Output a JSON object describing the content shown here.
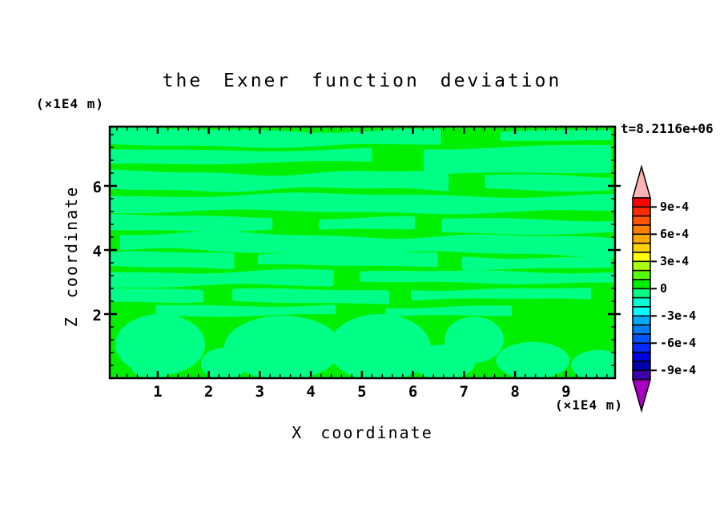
{
  "title": "the Exner function deviation",
  "time_label": "t=8.2116e+06",
  "x_axis_label": "X coordinate",
  "y_axis_label": "Z coordinate",
  "x_axis_unit": "(×1E4 m)",
  "y_axis_unit": "(×1E4 m)",
  "colorbar": {
    "labels": [
      "9e-4",
      "6e-4",
      "3e-4",
      "0",
      "-3e-4",
      "-6e-4",
      "-9e-4"
    ],
    "cell_colors": [
      "#FF0000",
      "#FF2A00",
      "#FF5500",
      "#FF8000",
      "#FFAA00",
      "#FFD400",
      "#FFFF00",
      "#AAFF00",
      "#55FF00",
      "#00EE00",
      "#00FF87",
      "#00FFD4",
      "#00FFFF",
      "#00AAFF",
      "#0080FF",
      "#0055FF",
      "#002AFF",
      "#0000E0",
      "#0000AA",
      "#3C00AA"
    ],
    "over_arrow_color": "#FFB4B4",
    "under_arrow_color": "#A800C0",
    "level_max": 0.001,
    "level_min": -0.001,
    "level_step": 0.0001
  },
  "chart_data": {
    "type": "heatmap",
    "subtype": "filled-contour",
    "title": "the Exner function deviation",
    "xlabel": "X coordinate",
    "ylabel": "Z coordinate",
    "x_unit": "(×1E4 m)",
    "y_unit": "(×1E4 m)",
    "time_annotation": "t=8.2116e+06",
    "xlim": [
      0.06,
      9.96
    ],
    "ylim": [
      0,
      7.85
    ],
    "x_major_ticks": [
      1,
      2,
      3,
      4,
      5,
      6,
      7,
      8,
      9
    ],
    "y_major_ticks": [
      2,
      4,
      6
    ],
    "x_minor_step": 0.2,
    "y_minor_step": 0.4,
    "contour_levels": {
      "min": -0.001,
      "max": 0.001,
      "step": 0.0001
    },
    "field_summary": "Exner function deviation is everywhere within ±1e-4: wavy horizontal bands of 0..+1e-4 (green) alternate with -1e-4..0 (spring green); below z≈2 the negative regions form large rounded blobs",
    "positive_color": "#00EE00",
    "negative_color": "#00FF87",
    "stripes": [
      [
        7.5,
        0.36,
        0.06,
        6.55,
        0.06,
        1.0,
        0.5,
        0
      ],
      [
        7.56,
        0.22,
        7.75,
        9.96,
        0.04,
        1.2,
        2.0,
        0
      ],
      [
        6.93,
        0.3,
        0.06,
        5.2,
        0.05,
        0.8,
        2.6,
        0
      ],
      [
        6.8,
        0.75,
        6.25,
        9.96,
        0.07,
        0.7,
        0.2,
        0
      ],
      [
        6.15,
        0.4,
        0.06,
        6.8,
        0.07,
        1.2,
        1.0,
        0
      ],
      [
        6.1,
        0.3,
        7.45,
        9.96,
        0.05,
        1.0,
        0.4,
        0
      ],
      [
        5.45,
        0.4,
        0.06,
        9.96,
        0.06,
        0.9,
        4.0,
        0
      ],
      [
        4.85,
        0.32,
        0.06,
        3.3,
        0.05,
        1.1,
        1.5,
        0
      ],
      [
        4.82,
        0.28,
        4.2,
        6.1,
        0.05,
        1.0,
        0.8,
        0
      ],
      [
        4.75,
        0.3,
        6.6,
        9.96,
        0.05,
        0.9,
        2.2,
        0
      ],
      [
        4.25,
        0.42,
        0.3,
        9.96,
        0.07,
        1.1,
        5.2,
        -0.015
      ],
      [
        3.68,
        0.32,
        0.06,
        2.5,
        0.05,
        1.3,
        0.3,
        0
      ],
      [
        3.7,
        0.28,
        3.0,
        6.5,
        0.05,
        1.0,
        2.8,
        0
      ],
      [
        3.6,
        0.24,
        7.0,
        9.96,
        0.04,
        1.2,
        1.1,
        0
      ],
      [
        3.1,
        0.34,
        0.06,
        4.5,
        0.06,
        1.0,
        3.6,
        0
      ],
      [
        3.15,
        0.22,
        5.0,
        9.96,
        0.04,
        1.1,
        0.6,
        0
      ],
      [
        2.6,
        0.28,
        0.06,
        2.0,
        0.05,
        1.4,
        2.1,
        0
      ],
      [
        2.55,
        0.26,
        2.5,
        5.5,
        0.05,
        1.0,
        4.4,
        0
      ],
      [
        2.62,
        0.2,
        6.0,
        9.5,
        0.04,
        1.2,
        3.3,
        0
      ],
      [
        2.12,
        0.2,
        1.0,
        4.5,
        0.04,
        1.0,
        1.8,
        0
      ],
      [
        2.08,
        0.18,
        5.5,
        8.0,
        0.04,
        1.1,
        5.0,
        0
      ]
    ],
    "blobs": [
      [
        1.05,
        1.05,
        0.88,
        0.95
      ],
      [
        0.9,
        0.3,
        0.4,
        0.32
      ],
      [
        2.3,
        0.45,
        0.45,
        0.5
      ],
      [
        3.45,
        0.95,
        1.15,
        1.0
      ],
      [
        5.35,
        0.95,
        1.0,
        1.05
      ],
      [
        6.6,
        0.5,
        0.62,
        0.55
      ],
      [
        7.2,
        1.2,
        0.58,
        0.72
      ],
      [
        8.35,
        0.55,
        0.72,
        0.58
      ],
      [
        9.65,
        0.4,
        0.55,
        0.48
      ]
    ]
  }
}
